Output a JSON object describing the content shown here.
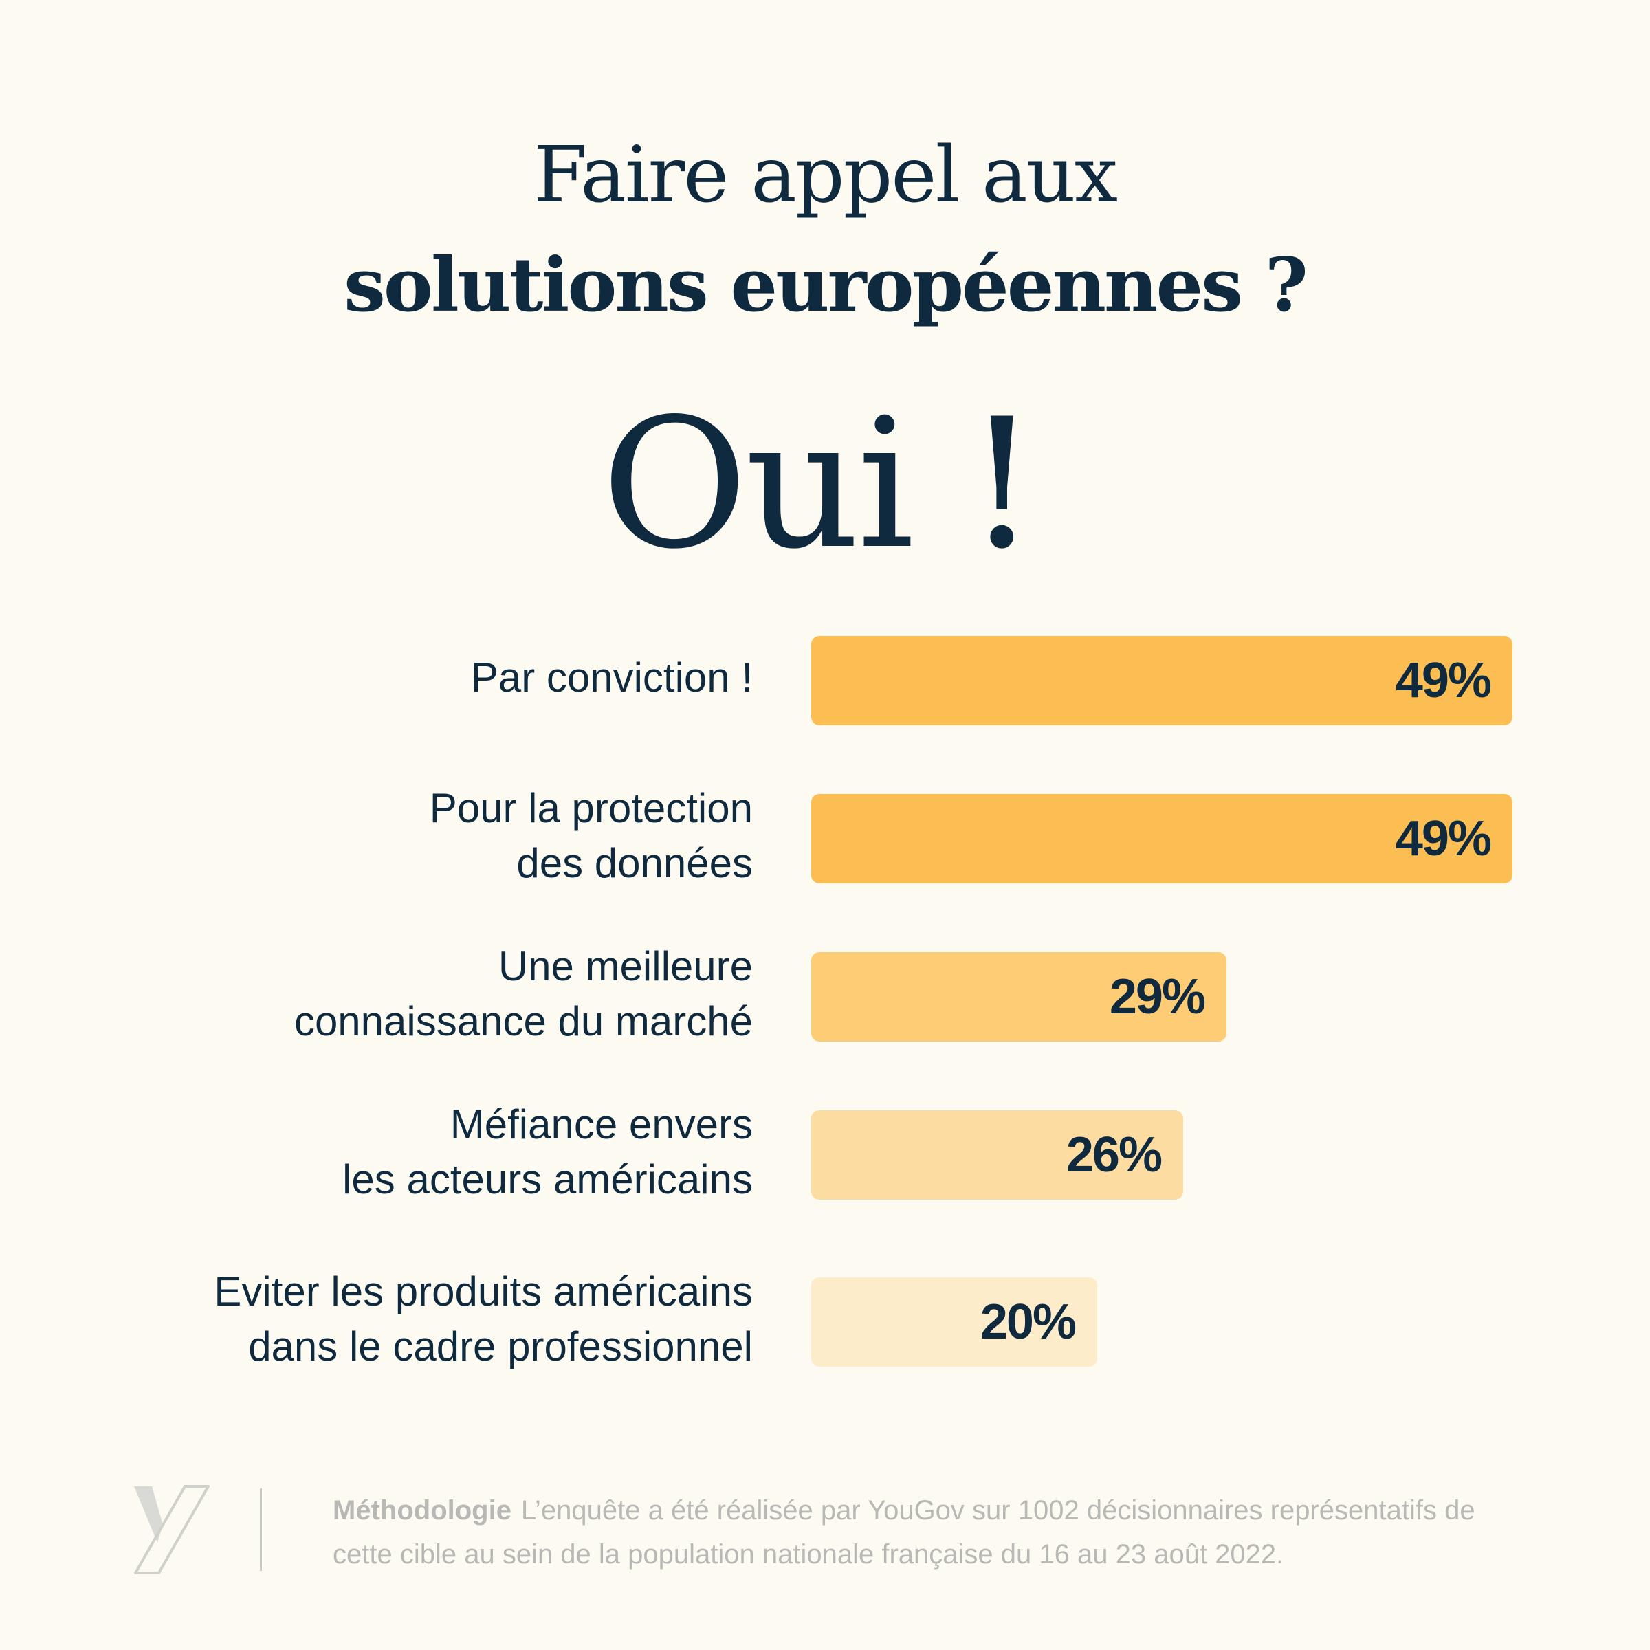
{
  "title": {
    "line1": "Faire appel aux",
    "line2": "solutions européennes ?"
  },
  "answer": "Oui !",
  "chart_data": {
    "type": "bar",
    "orientation": "horizontal",
    "categories": [
      "Par conviction !",
      "Pour la protection\ndes données",
      "Une meilleure\nconnaissance du marché",
      "Méfiance envers\nles acteurs américains",
      "Eviter les produits américains\ndans le cadre professionnel"
    ],
    "values": [
      49,
      49,
      29,
      26,
      20
    ],
    "value_labels": [
      "49%",
      "49%",
      "29%",
      "26%",
      "20%"
    ],
    "unit": "%",
    "colors": [
      "#fcbd52",
      "#fcbd52",
      "#fdcc75",
      "#fddca2",
      "#fdecca"
    ],
    "xlim": [
      0,
      49
    ],
    "grid": false,
    "legend": false
  },
  "footer": {
    "methodology_title": "Méthodologie",
    "methodology_text": "L’enquête a été réalisée par YouGov sur 1002 décisionnaires représentatifs de cette cible au sein de la population nationale française du 16 au 23 août 2022."
  },
  "logo_icon": "stylized-y-logo-icon",
  "colors": {
    "background": "#fdfaf2",
    "text": "#0f2a3e",
    "muted": "#b8b8b4"
  }
}
